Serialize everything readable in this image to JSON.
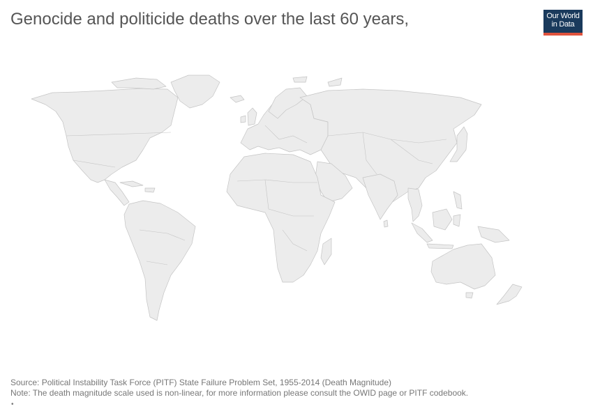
{
  "title": "Genocide and politicide deaths over the last 60 years,",
  "logo": {
    "line1": "Our World",
    "line2": "in Data"
  },
  "source": "Source: Political Instability Task Force (PITF) State Failure Problem Set, 1955-2014 (Death Magnitude)",
  "note": "Note: The death magnitude scale used is non-linear, for more information please consult the OWID page or PITF codebook.",
  "bullet": "•",
  "colors": {
    "land": "#ececec",
    "border": "#c4c4c4",
    "logo_bg": "#1a3a5c",
    "logo_bar": "#e0533d"
  }
}
